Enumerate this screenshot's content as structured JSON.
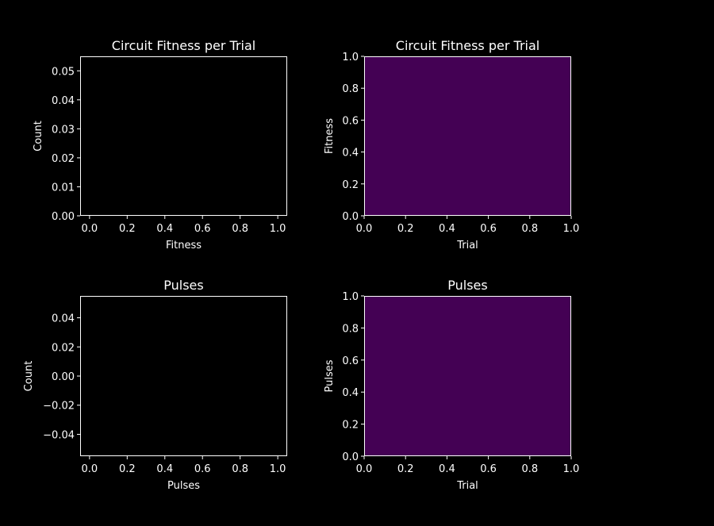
{
  "figure": {
    "background": "#000000",
    "foreground": "#ffffff"
  },
  "chart_data": [
    {
      "id": "fitness-histogram",
      "type": "bar",
      "title": "Circuit Fitness per Trial",
      "xlabel": "Fitness",
      "ylabel": "Count",
      "xlim": [
        -0.05,
        1.05
      ],
      "ylim": [
        0.0,
        0.055
      ],
      "xticks": [
        "0.0",
        "0.2",
        "0.4",
        "0.6",
        "0.8",
        "1.0"
      ],
      "yticks": [
        "0.00",
        "0.01",
        "0.02",
        "0.03",
        "0.04",
        "0.05"
      ],
      "xtick_values": [
        0.0,
        0.2,
        0.4,
        0.6,
        0.8,
        1.0
      ],
      "ytick_values": [
        0.0,
        0.01,
        0.02,
        0.03,
        0.04,
        0.05
      ],
      "categories": [],
      "values": [],
      "grid": false,
      "fill_color": "#000000"
    },
    {
      "id": "fitness-heatmap",
      "type": "heatmap",
      "title": "Circuit Fitness per Trial",
      "xlabel": "Trial",
      "ylabel": "Fitness",
      "xlim": [
        0.0,
        1.0
      ],
      "ylim": [
        0.0,
        1.0
      ],
      "xticks": [
        "0.0",
        "0.2",
        "0.4",
        "0.6",
        "0.8",
        "1.0"
      ],
      "yticks": [
        "0.0",
        "0.2",
        "0.4",
        "0.6",
        "0.8",
        "1.0"
      ],
      "xtick_values": [
        0.0,
        0.2,
        0.4,
        0.6,
        0.8,
        1.0
      ],
      "ytick_values": [
        0.0,
        0.2,
        0.4,
        0.6,
        0.8,
        1.0
      ],
      "cells": [],
      "grid": false,
      "fill_color": "#440154"
    },
    {
      "id": "pulses-histogram",
      "type": "bar",
      "title": "Pulses",
      "xlabel": "Pulses",
      "ylabel": "Count",
      "xlim": [
        -0.05,
        1.05
      ],
      "ylim": [
        -0.055,
        0.055
      ],
      "xticks": [
        "0.0",
        "0.2",
        "0.4",
        "0.6",
        "0.8",
        "1.0"
      ],
      "yticks": [
        "−0.04",
        "−0.02",
        "0.00",
        "0.02",
        "0.04"
      ],
      "xtick_values": [
        0.0,
        0.2,
        0.4,
        0.6,
        0.8,
        1.0
      ],
      "ytick_values": [
        -0.04,
        -0.02,
        0.0,
        0.02,
        0.04
      ],
      "categories": [],
      "values": [],
      "grid": false,
      "fill_color": "#000000"
    },
    {
      "id": "pulses-heatmap",
      "type": "heatmap",
      "title": "Pulses",
      "xlabel": "Trial",
      "ylabel": "Pulses",
      "xlim": [
        0.0,
        1.0
      ],
      "ylim": [
        0.0,
        1.0
      ],
      "xticks": [
        "0.0",
        "0.2",
        "0.4",
        "0.6",
        "0.8",
        "1.0"
      ],
      "yticks": [
        "0.0",
        "0.2",
        "0.4",
        "0.6",
        "0.8",
        "1.0"
      ],
      "xtick_values": [
        0.0,
        0.2,
        0.4,
        0.6,
        0.8,
        1.0
      ],
      "ytick_values": [
        0.0,
        0.2,
        0.4,
        0.6,
        0.8,
        1.0
      ],
      "cells": [],
      "grid": false,
      "fill_color": "#440154"
    }
  ]
}
